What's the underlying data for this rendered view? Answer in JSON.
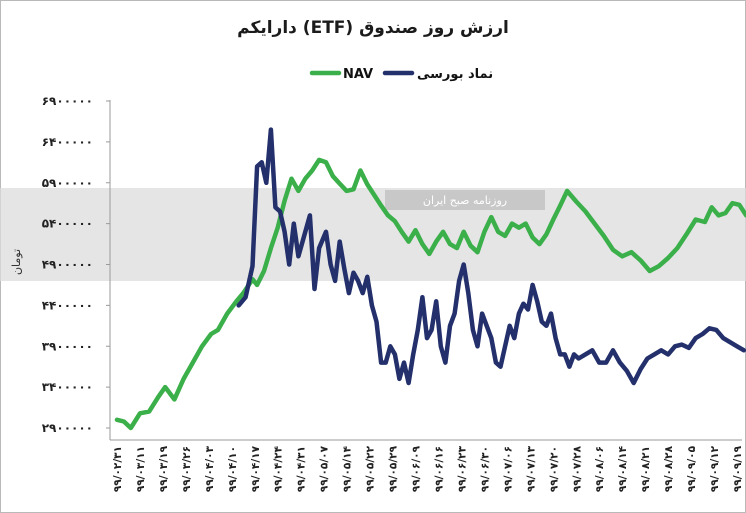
{
  "chart_data": {
    "type": "line",
    "title": "ارزش روز صندوق (ETF) دارایکم",
    "ylabel": "تومان",
    "xlabel": "",
    "ylim": [
      2900000,
      6900000
    ],
    "yticks": [
      2900000,
      3400000,
      3900000,
      4400000,
      4900000,
      5400000,
      5900000,
      6400000,
      6900000
    ],
    "ytick_labels": [
      "۲۹۰۰۰۰۰",
      "۳۴۰۰۰۰۰",
      "۳۹۰۰۰۰۰",
      "۴۴۰۰۰۰۰",
      "۴۹۰۰۰۰۰",
      "۵۴۰۰۰۰۰",
      "۵۹۰۰۰۰۰",
      "۶۴۰۰۰۰۰",
      "۶۹۰۰۰۰۰"
    ],
    "xtick_labels": [
      "۹۹/۰۲/۳۱",
      "۹۹/۰۳/۱۱",
      "۹۹/۰۳/۱۹",
      "۹۹/۰۳/۲۶",
      "۹۹/۰۴/۰۳",
      "۹۹/۰۴/۱۰",
      "۹۹/۰۴/۱۷",
      "۹۹/۰۴/۲۴",
      "۹۹/۰۴/۳۱",
      "۹۹/۰۵/۰۷",
      "۹۹/۰۵/۱۴",
      "۹۹/۰۵/۲۲",
      "۹۹/۰۵/۲۹",
      "۹۹/۰۶/۰۹",
      "۹۹/۰۶/۱۶",
      "۹۹/۰۶/۲۳",
      "۹۹/۰۶/۳۰",
      "۹۹/۰۷/۰۶",
      "۹۹/۰۷/۱۳",
      "۹۹/۰۷/۲۰",
      "۹۹/۰۷/۲۸",
      "۹۹/۰۸/۰۶",
      "۹۹/۰۸/۱۴",
      "۹۹/۰۸/۲۱",
      "۹۹/۰۸/۲۸",
      "۹۹/۰۹/۰۵",
      "۹۹/۰۹/۱۲",
      "۹۹/۰۹/۱۹"
    ],
    "grid": false,
    "legend_position": "top-center",
    "series": [
      {
        "name": "NAV",
        "color": "#3bb04a",
        "points": [
          [
            0,
            3000000
          ],
          [
            0.3,
            2980000
          ],
          [
            0.6,
            2900000
          ],
          [
            1,
            3080000
          ],
          [
            1.4,
            3100000
          ],
          [
            1.8,
            3280000
          ],
          [
            2.1,
            3400000
          ],
          [
            2.5,
            3250000
          ],
          [
            2.9,
            3500000
          ],
          [
            3.3,
            3700000
          ],
          [
            3.7,
            3900000
          ],
          [
            4.1,
            4050000
          ],
          [
            4.4,
            4100000
          ],
          [
            4.8,
            4300000
          ],
          [
            5.2,
            4450000
          ],
          [
            5.5,
            4550000
          ],
          [
            5.9,
            4720000
          ],
          [
            6.1,
            4650000
          ],
          [
            6.4,
            4820000
          ],
          [
            6.7,
            5100000
          ],
          [
            7,
            5350000
          ],
          [
            7.3,
            5680000
          ],
          [
            7.6,
            5950000
          ],
          [
            7.9,
            5800000
          ],
          [
            8.2,
            5950000
          ],
          [
            8.5,
            6050000
          ],
          [
            8.8,
            6180000
          ],
          [
            9.1,
            6150000
          ],
          [
            9.4,
            5980000
          ],
          [
            9.7,
            5890000
          ],
          [
            10,
            5800000
          ],
          [
            10.3,
            5820000
          ],
          [
            10.6,
            6050000
          ],
          [
            10.9,
            5880000
          ],
          [
            11.2,
            5750000
          ],
          [
            11.5,
            5620000
          ],
          [
            11.8,
            5500000
          ],
          [
            12.1,
            5430000
          ],
          [
            12.4,
            5300000
          ],
          [
            12.7,
            5180000
          ],
          [
            13,
            5320000
          ],
          [
            13.3,
            5150000
          ],
          [
            13.6,
            5030000
          ],
          [
            13.9,
            5180000
          ],
          [
            14.2,
            5300000
          ],
          [
            14.5,
            5150000
          ],
          [
            14.8,
            5100000
          ],
          [
            15.1,
            5300000
          ],
          [
            15.4,
            5130000
          ],
          [
            15.7,
            5050000
          ],
          [
            16,
            5300000
          ],
          [
            16.3,
            5480000
          ],
          [
            16.6,
            5300000
          ],
          [
            16.9,
            5250000
          ],
          [
            17.2,
            5400000
          ],
          [
            17.5,
            5350000
          ],
          [
            17.8,
            5400000
          ],
          [
            18.1,
            5230000
          ],
          [
            18.4,
            5150000
          ],
          [
            18.7,
            5270000
          ],
          [
            19,
            5450000
          ],
          [
            19.3,
            5620000
          ],
          [
            19.6,
            5800000
          ],
          [
            20,
            5670000
          ],
          [
            20.4,
            5550000
          ],
          [
            20.8,
            5400000
          ],
          [
            21.2,
            5250000
          ],
          [
            21.6,
            5080000
          ],
          [
            22,
            5000000
          ],
          [
            22.4,
            5050000
          ],
          [
            22.8,
            4950000
          ],
          [
            23.2,
            4820000
          ],
          [
            23.6,
            4880000
          ],
          [
            24,
            4980000
          ],
          [
            24.4,
            5100000
          ],
          [
            24.8,
            5270000
          ],
          [
            25.2,
            5450000
          ],
          [
            25.6,
            5420000
          ],
          [
            25.9,
            5600000
          ],
          [
            26.2,
            5500000
          ],
          [
            26.5,
            5530000
          ],
          [
            26.8,
            5650000
          ],
          [
            27.1,
            5630000
          ],
          [
            27.4,
            5500000
          ]
        ]
      },
      {
        "name": "نماد بورسی",
        "color": "#23306b",
        "points": [
          [
            5.3,
            4400000
          ],
          [
            5.6,
            4500000
          ],
          [
            5.9,
            4880000
          ],
          [
            6.1,
            6100000
          ],
          [
            6.3,
            6150000
          ],
          [
            6.5,
            5900000
          ],
          [
            6.7,
            6550000
          ],
          [
            6.9,
            5600000
          ],
          [
            7.1,
            5550000
          ],
          [
            7.3,
            5300000
          ],
          [
            7.5,
            4900000
          ],
          [
            7.7,
            5400000
          ],
          [
            7.9,
            5000000
          ],
          [
            8.1,
            5200000
          ],
          [
            8.4,
            5500000
          ],
          [
            8.6,
            4600000
          ],
          [
            8.8,
            5100000
          ],
          [
            9.1,
            5300000
          ],
          [
            9.3,
            4900000
          ],
          [
            9.5,
            4700000
          ],
          [
            9.7,
            5180000
          ],
          [
            9.9,
            4850000
          ],
          [
            10.1,
            4550000
          ],
          [
            10.3,
            4800000
          ],
          [
            10.5,
            4700000
          ],
          [
            10.7,
            4550000
          ],
          [
            10.9,
            4750000
          ],
          [
            11.1,
            4400000
          ],
          [
            11.3,
            4200000
          ],
          [
            11.5,
            3700000
          ],
          [
            11.7,
            3700000
          ],
          [
            11.9,
            3900000
          ],
          [
            12.1,
            3800000
          ],
          [
            12.3,
            3500000
          ],
          [
            12.5,
            3700000
          ],
          [
            12.7,
            3450000
          ],
          [
            12.9,
            3800000
          ],
          [
            13.1,
            4100000
          ],
          [
            13.3,
            4500000
          ],
          [
            13.5,
            4000000
          ],
          [
            13.7,
            4100000
          ],
          [
            13.9,
            4450000
          ],
          [
            14.1,
            3900000
          ],
          [
            14.3,
            3700000
          ],
          [
            14.5,
            4150000
          ],
          [
            14.7,
            4300000
          ],
          [
            14.9,
            4700000
          ],
          [
            15.1,
            4900000
          ],
          [
            15.3,
            4550000
          ],
          [
            15.5,
            4100000
          ],
          [
            15.7,
            3900000
          ],
          [
            15.9,
            4300000
          ],
          [
            16.1,
            4150000
          ],
          [
            16.3,
            4000000
          ],
          [
            16.5,
            3700000
          ],
          [
            16.7,
            3650000
          ],
          [
            16.9,
            3900000
          ],
          [
            17.1,
            4150000
          ],
          [
            17.3,
            4000000
          ],
          [
            17.5,
            4300000
          ],
          [
            17.7,
            4420000
          ],
          [
            17.9,
            4350000
          ],
          [
            18.1,
            4650000
          ],
          [
            18.3,
            4450000
          ],
          [
            18.5,
            4200000
          ],
          [
            18.7,
            4150000
          ],
          [
            18.9,
            4300000
          ],
          [
            19.1,
            4000000
          ],
          [
            19.3,
            3800000
          ],
          [
            19.5,
            3800000
          ],
          [
            19.7,
            3650000
          ],
          [
            19.9,
            3800000
          ],
          [
            20.1,
            3750000
          ],
          [
            20.4,
            3800000
          ],
          [
            20.7,
            3850000
          ],
          [
            21,
            3700000
          ],
          [
            21.3,
            3700000
          ],
          [
            21.6,
            3850000
          ],
          [
            21.9,
            3700000
          ],
          [
            22.2,
            3600000
          ],
          [
            22.5,
            3450000
          ],
          [
            22.8,
            3620000
          ],
          [
            23.1,
            3750000
          ],
          [
            23.4,
            3800000
          ],
          [
            23.7,
            3850000
          ],
          [
            24,
            3800000
          ],
          [
            24.3,
            3900000
          ],
          [
            24.6,
            3920000
          ],
          [
            24.9,
            3880000
          ],
          [
            25.2,
            4000000
          ],
          [
            25.5,
            4050000
          ],
          [
            25.8,
            4120000
          ],
          [
            26.1,
            4100000
          ],
          [
            26.4,
            4000000
          ],
          [
            26.7,
            3950000
          ],
          [
            27,
            3900000
          ],
          [
            27.3,
            3850000
          ]
        ]
      }
    ]
  },
  "watermark": {
    "text": "روزنامه صبح ایران"
  }
}
